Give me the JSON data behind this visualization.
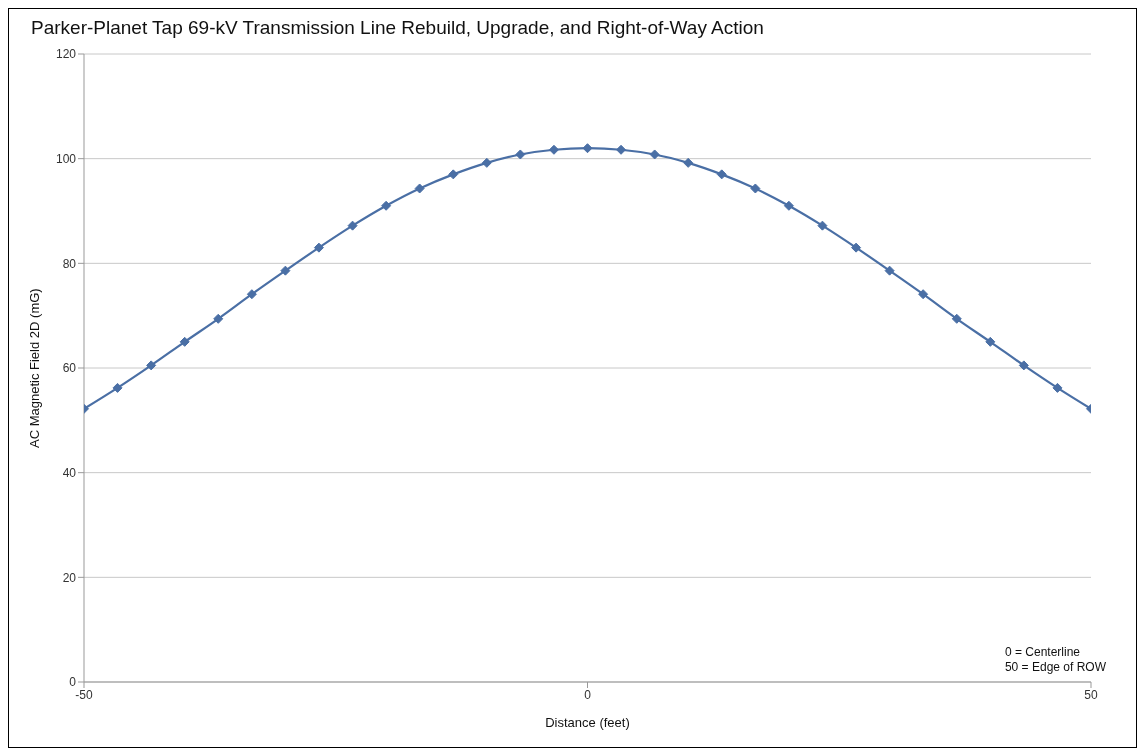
{
  "chart_data": {
    "type": "line",
    "title": "Parker-Planet Tap 69-kV Transmission Line Rebuild, Upgrade, and Right-of-Way Action",
    "xlabel": "Distance (feet)",
    "ylabel": "AC Magnetic Field 2D (mG)",
    "x": [
      -50,
      -46.67,
      -43.33,
      -40,
      -36.67,
      -33.33,
      -30,
      -26.67,
      -23.33,
      -20,
      -16.67,
      -13.33,
      -10,
      -6.67,
      -3.33,
      0,
      3.33,
      6.67,
      10,
      13.33,
      16.67,
      20,
      23.33,
      26.67,
      30,
      33.33,
      36.67,
      40,
      43.33,
      46.67,
      50
    ],
    "series": [
      {
        "color": "#4a6fa5",
        "values": [
          52.2,
          56.2,
          60.5,
          65,
          69.4,
          74.1,
          78.6,
          83,
          87.2,
          91,
          94.3,
          97,
          99.2,
          100.8,
          101.7,
          102,
          101.7,
          100.8,
          99.2,
          97,
          94.3,
          91,
          87.2,
          83,
          78.6,
          74.1,
          69.4,
          65,
          60.5,
          56.2,
          52.2
        ]
      }
    ],
    "xlim": [
      -50,
      50
    ],
    "xticks": [
      -50,
      0,
      50
    ],
    "ylim": [
      0,
      120
    ],
    "yticks": [
      0,
      20,
      40,
      60,
      80,
      100,
      120
    ],
    "grid": "y",
    "marker": "diamond",
    "line_style": "solid",
    "annotations": [
      "0 = Centerline\n50 = Edge of ROW"
    ]
  }
}
